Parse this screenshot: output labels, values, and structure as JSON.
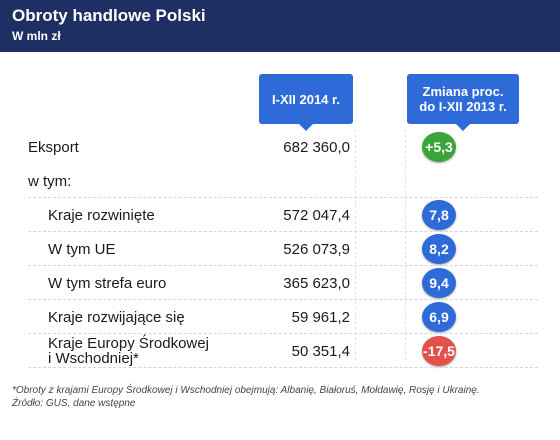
{
  "header": {
    "title": "Obroty handlowe Polski",
    "subtitle": "W mln zł"
  },
  "columns": {
    "value_label": "I-XII 2014 r.",
    "change_label_line1": "Zmiana proc.",
    "change_label_line2": "do I-XII 2013 r."
  },
  "colors": {
    "header_bg": "#1e2f63",
    "column_header": "#2f6bd8",
    "positive_green": "#3aa53a",
    "blue": "#2f6bd8",
    "negative_red": "#e2514c"
  },
  "rows": [
    {
      "label": "Eksport",
      "value": "682 360,0",
      "change": "+5,3",
      "color": "#3aa53a"
    },
    {
      "label": "w tym:",
      "value": "",
      "change": ""
    },
    {
      "label": "Kraje rozwinięte",
      "value": "572 047,4",
      "change": "7,8",
      "color": "#2f6bd8"
    },
    {
      "label": "W tym UE",
      "value": "526 073,9",
      "change": "8,2",
      "color": "#2f6bd8"
    },
    {
      "label": "W tym strefa euro",
      "value": "365 623,0",
      "change": "9,4",
      "color": "#2f6bd8"
    },
    {
      "label": "Kraje rozwijające się",
      "value": "59 961,2",
      "change": "6,9",
      "color": "#2f6bd8"
    },
    {
      "label": "Kraje Europy Środkowej\ni Wschodniej*",
      "value": "50 351,4",
      "change": "-17,5",
      "color": "#e2514c"
    }
  ],
  "footnotes": {
    "note": "*Obroty z krajami Europy Środkowej i Wschodniej obejmują: Albanię, Białoruś, Mołdawię, Rosję i Ukrainę.",
    "source": "Źródło: GUS, dane wstępne"
  }
}
